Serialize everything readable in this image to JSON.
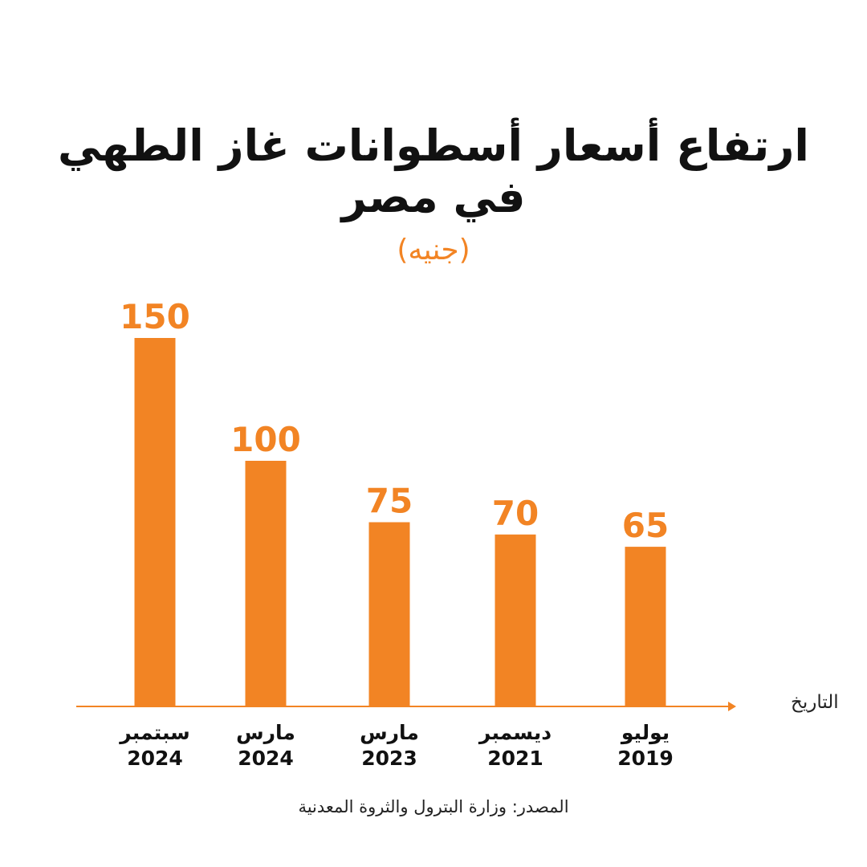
{
  "title_lines": [
    "ارتفاع أسعار أسطوانات غاز الطهي",
    "في مصر"
  ],
  "unit": "(جنيه)",
  "source": "المصدر: وزارة البترول والثروة المعدنية",
  "colors": {
    "accent": "#f28424",
    "text": "#111111"
  },
  "chart_data": {
    "type": "bar",
    "title": "ارتفاع أسعار أسطوانات غاز الطهي في مصر",
    "unit": "(جنيه)",
    "xlabel": "التاريخ",
    "ylabel": "",
    "grid": false,
    "legend": "none",
    "ylim": [
      0,
      150
    ],
    "categories": [
      {
        "month": "سبتمبر",
        "year": "2024"
      },
      {
        "month": "مارس",
        "year": "2024"
      },
      {
        "month": "مارس",
        "year": "2023"
      },
      {
        "month": "ديسمبر",
        "year": "2021"
      },
      {
        "month": "يوليو",
        "year": "2019"
      }
    ],
    "values": [
      150,
      100,
      75,
      70,
      65
    ]
  }
}
